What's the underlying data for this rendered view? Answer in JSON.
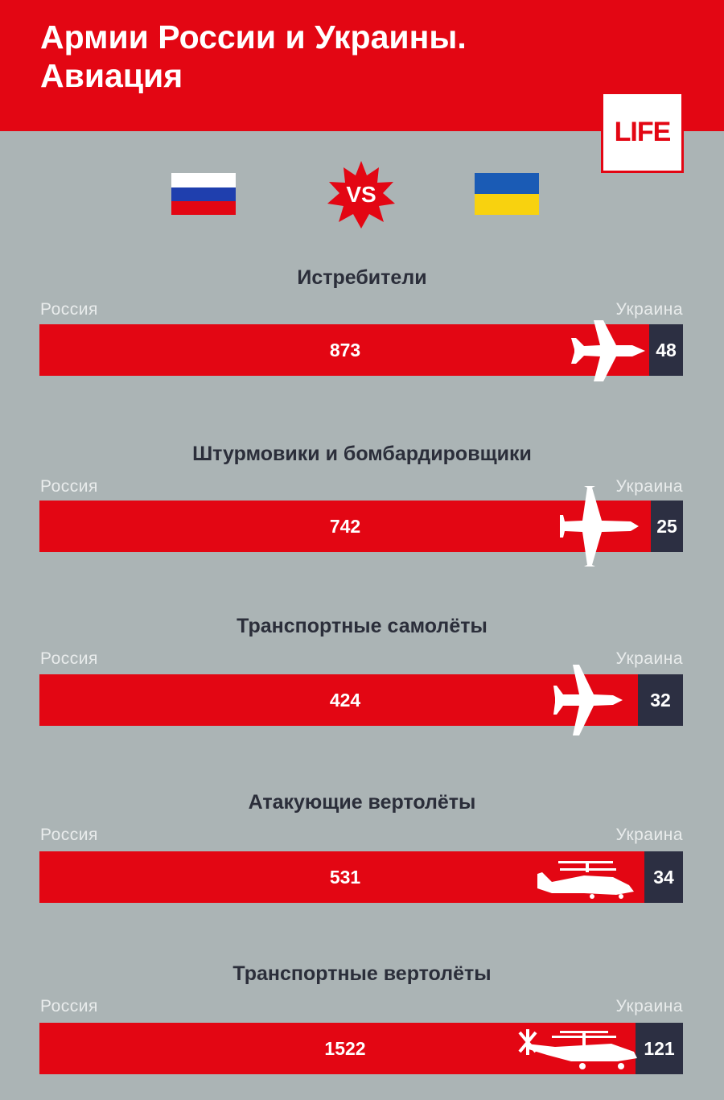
{
  "header": {
    "title_line1": "Армии России и Украины.",
    "title_line2": "Авиация",
    "logo": "LIFE"
  },
  "vs_label": "VS",
  "colors": {
    "russia": "#e30613",
    "ukraine": "#2c2f42",
    "background": "#abb4b5"
  },
  "chart_data": [
    {
      "type": "bar",
      "title": "Истребители",
      "categories": [
        "Россия",
        "Украина"
      ],
      "values": [
        873,
        48
      ],
      "icon": "fighter-jet-icon"
    },
    {
      "type": "bar",
      "title": "Штурмовики и бомбардировщики",
      "categories": [
        "Россия",
        "Украина"
      ],
      "values": [
        742,
        25
      ],
      "icon": "bomber-plane-icon"
    },
    {
      "type": "bar",
      "title": "Транспортные самолёты",
      "categories": [
        "Россия",
        "Украина"
      ],
      "values": [
        424,
        32
      ],
      "icon": "transport-plane-icon"
    },
    {
      "type": "bar",
      "title": "Атакующие вертолёты",
      "categories": [
        "Россия",
        "Украина"
      ],
      "values": [
        531,
        34
      ],
      "icon": "attack-helicopter-icon"
    },
    {
      "type": "bar",
      "title": "Транспортные вертолёты",
      "categories": [
        "Россия",
        "Украина"
      ],
      "values": [
        1522,
        121
      ],
      "icon": "transport-helicopter-icon"
    }
  ]
}
